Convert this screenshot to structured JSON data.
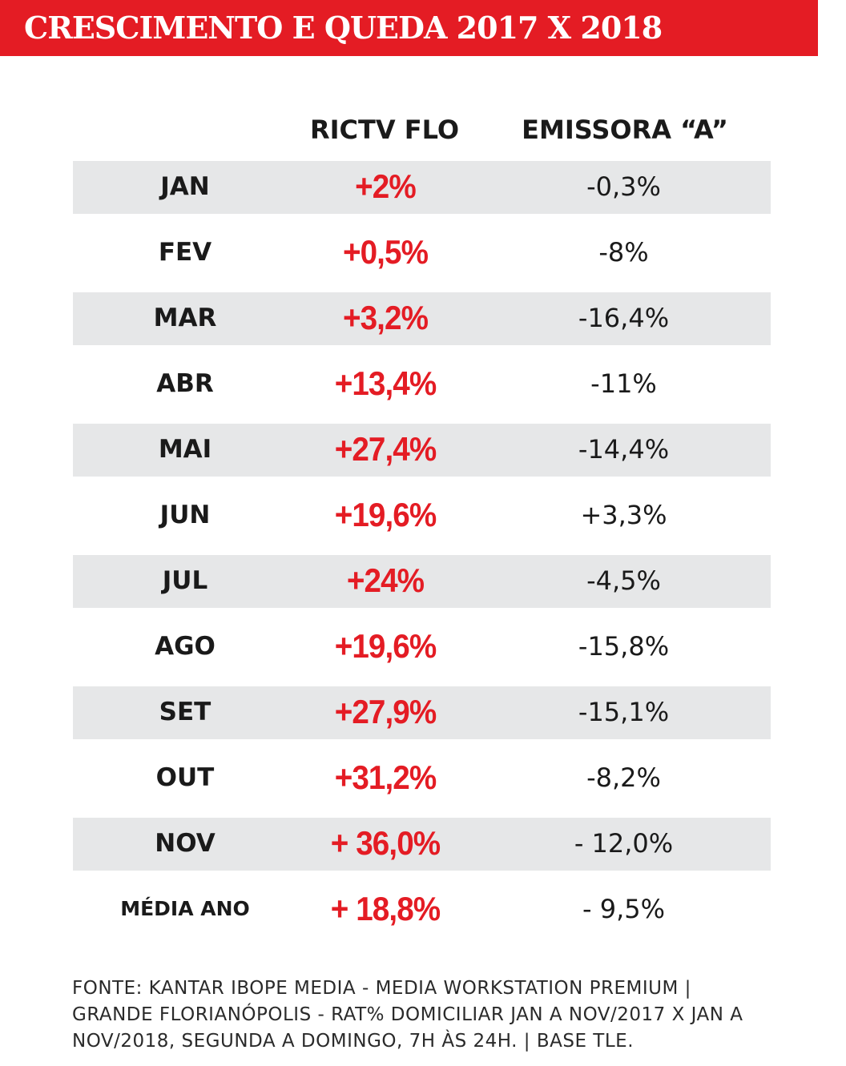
{
  "title": "CRESCIMENTO E QUEDA 2017 X 2018",
  "colors": {
    "accent": "#e41c24",
    "row_shade": "#e6e7e8",
    "text": "#1a1a1a"
  },
  "headers": {
    "ric": "RICTV FLO",
    "emissora": "EMISSORA “A”"
  },
  "rows": [
    {
      "month": "JAN",
      "ric": "+2%",
      "emissora": "-0,3%"
    },
    {
      "month": "FEV",
      "ric": "+0,5%",
      "emissora": "-8%"
    },
    {
      "month": "MAR",
      "ric": "+3,2%",
      "emissora": "-16,4%"
    },
    {
      "month": "ABR",
      "ric": "+13,4%",
      "emissora": "-11%"
    },
    {
      "month": "MAI",
      "ric": "+27,4%",
      "emissora": "-14,4%"
    },
    {
      "month": "JUN",
      "ric": "+19,6%",
      "emissora": "+3,3%"
    },
    {
      "month": "JUL",
      "ric": "+24%",
      "emissora": "-4,5%"
    },
    {
      "month": "AGO",
      "ric": "+19,6%",
      "emissora": "-15,8%"
    },
    {
      "month": "SET",
      "ric": "+27,9%",
      "emissora": "-15,1%"
    },
    {
      "month": "OUT",
      "ric": "+31,2%",
      "emissora": "-8,2%"
    },
    {
      "month": "NOV",
      "ric": "+ 36,0%",
      "emissora": "- 12,0%"
    },
    {
      "month": "MÉDIA ANO",
      "ric": "+ 18,8%",
      "emissora": "- 9,5%"
    }
  ],
  "footer": {
    "line1": "FONTE:  KANTAR IBOPE MEDIA - MEDIA WORKSTATION PREMIUM |",
    "line2": "GRANDE FLORIANÓPOLIS - RAT% DOMICILIAR JAN A NOV/2017 X JAN A",
    "line3": "NOV/2018, SEGUNDA A DOMINGO, 7H ÀS 24H.  | BASE TLE."
  }
}
